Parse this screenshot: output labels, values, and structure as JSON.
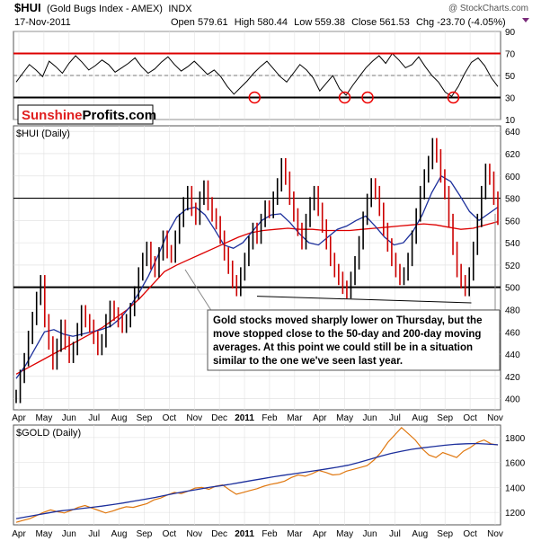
{
  "header": {
    "symbol": "$HUI",
    "name": "(Gold Bugs Index - AMEX)",
    "exchange_tag": "INDX",
    "watermark": "@ StockCharts.com",
    "date": "17-Nov-2011",
    "quote": {
      "open_label": "Open",
      "open": "579.61",
      "high_label": "High",
      "high": "580.44",
      "low_label": "Low",
      "low": "559.38",
      "close_label": "Close",
      "close": "561.53",
      "chg_label": "Chg",
      "chg": "-23.70 (-4.05%)"
    }
  },
  "brand": {
    "part1": "Sunshine",
    "part2": "Profits.com"
  },
  "annotation": "Gold stocks moved sharply lower on Thursday, but the move stopped close to the 50-day and 200-day moving averages. At this point we could still be in a situation similar to the one we've seen last year.",
  "annotation_lines": [
    "Gold stocks moved sharply lower on Thursday, but the",
    "move stopped close to the 50-day and 200-day moving",
    "averages. At this point we could still be in a situation",
    "similar to the one we've seen last year."
  ],
  "colors": {
    "price_up": "#000000",
    "price_down": "#cc0000",
    "ma50": "#1c2f9c",
    "ma200": "#dd0000",
    "gold": "#e07810",
    "rsi": "#000000",
    "rsi_band": "#dd0000",
    "circle": "#ee0000",
    "support": "#000000"
  },
  "chart_data": [
    {
      "type": "line",
      "panel": "RSI",
      "y_ticks": [
        "90",
        "70",
        "50",
        "30",
        "10"
      ],
      "ylim": [
        10,
        90
      ],
      "reference_lines": [
        70,
        30
      ],
      "oversold_marks": [
        "Jan 2011",
        "May 2011",
        "Jun 2011",
        "Oct 2011"
      ],
      "series": [
        {
          "values": [
            44,
            52,
            60,
            55,
            49,
            63,
            58,
            52,
            61,
            68,
            62,
            55,
            59,
            64,
            60,
            53,
            57,
            61,
            66,
            58,
            52,
            56,
            62,
            67,
            60,
            54,
            58,
            63,
            57,
            51,
            55,
            49,
            40,
            33,
            39,
            45,
            52,
            58,
            63,
            56,
            49,
            44,
            52,
            60,
            55,
            48,
            36,
            43,
            50,
            38,
            32,
            41,
            49,
            57,
            63,
            68,
            61,
            70,
            64,
            57,
            60,
            67,
            58,
            50,
            44,
            35,
            31,
            40,
            52,
            62,
            66,
            59,
            48,
            40
          ]
        }
      ]
    },
    {
      "type": "line",
      "title": "$HUI (Daily)",
      "x_ticks": [
        "Apr",
        "May",
        "Jun",
        "Jul",
        "Aug",
        "Sep",
        "Oct",
        "Nov",
        "Dec",
        "2011",
        "Feb",
        "Mar",
        "Apr",
        "May",
        "Jun",
        "Jul",
        "Aug",
        "Sep",
        "Oct",
        "Nov"
      ],
      "y_ticks": [
        "640",
        "620",
        "600",
        "580",
        "560",
        "540",
        "520",
        "500",
        "480",
        "460",
        "440",
        "420",
        "400"
      ],
      "ylim": [
        390,
        645
      ],
      "horizontal_lines": [
        580,
        500
      ],
      "trendline": {
        "from": [
          "Jan 2011",
          492
        ],
        "to": [
          "Nov 2011",
          486
        ]
      },
      "series": [
        {
          "name": "$HUI",
          "values": [
            402,
            420,
            435,
            455,
            472,
            490,
            505,
            470,
            450,
            432,
            448,
            465,
            450,
            438,
            445,
            462,
            478,
            470,
            465,
            455,
            445,
            452,
            470,
            482,
            476,
            470,
            465,
            470,
            480,
            495,
            512,
            525,
            535,
            522,
            515,
            530,
            545,
            532,
            528,
            545,
            560,
            575,
            585,
            570,
            562,
            580,
            590,
            575,
            565,
            558,
            545,
            530,
            518,
            505,
            498,
            512,
            525,
            540,
            552,
            545,
            560,
            572,
            568,
            580,
            592,
            610,
            598,
            580,
            565,
            552,
            540,
            560,
            575,
            585,
            570,
            555,
            540,
            525,
            515,
            508,
            500,
            496,
            508,
            522,
            540,
            562,
            578,
            592,
            585,
            570,
            552,
            538,
            525,
            515,
            508,
            512,
            525,
            545,
            565,
            585,
            600,
            612,
            628,
            618,
            600,
            585,
            560,
            535,
            515,
            505,
            498,
            512,
            535,
            560,
            585,
            605,
            598,
            580,
            562
          ]
        },
        {
          "name": "50-day MA",
          "values": [
            418,
            430,
            445,
            460,
            462,
            458,
            456,
            458,
            460,
            462,
            465,
            472,
            482,
            495,
            510,
            528,
            548,
            563,
            570,
            572,
            565,
            552,
            538,
            535,
            540,
            550,
            560,
            565,
            566,
            558,
            548,
            540,
            538,
            545,
            552,
            555,
            560,
            564,
            555,
            545,
            538,
            540,
            550,
            565,
            585,
            600,
            595,
            582,
            568,
            560,
            566,
            572
          ]
        },
        {
          "name": "200-day MA",
          "values": [
            422,
            428,
            434,
            440,
            446,
            452,
            458,
            464,
            472,
            480,
            490,
            502,
            514,
            520,
            525,
            530,
            535,
            540,
            545,
            549,
            551,
            552,
            553,
            552,
            552,
            551,
            551,
            551,
            552,
            553,
            554,
            555,
            556,
            557,
            556,
            554,
            552,
            553,
            556,
            559
          ]
        }
      ]
    },
    {
      "type": "line",
      "title": "$GOLD (Daily)",
      "x_ticks": [
        "Apr",
        "May",
        "Jun",
        "Jul",
        "Aug",
        "Sep",
        "Oct",
        "Nov",
        "Dec",
        "2011",
        "Feb",
        "Mar",
        "Apr",
        "May",
        "Jun",
        "Jul",
        "Aug",
        "Sep",
        "Oct",
        "Nov"
      ],
      "y_ticks": [
        "1800",
        "1600",
        "1400",
        "1200"
      ],
      "ylim": [
        1100,
        1900
      ],
      "series": [
        {
          "name": "$GOLD",
          "values": [
            1120,
            1135,
            1150,
            1175,
            1200,
            1220,
            1205,
            1195,
            1215,
            1240,
            1255,
            1235,
            1215,
            1195,
            1210,
            1230,
            1245,
            1240,
            1255,
            1270,
            1300,
            1315,
            1340,
            1360,
            1350,
            1370,
            1395,
            1400,
            1385,
            1410,
            1420,
            1380,
            1345,
            1360,
            1375,
            1390,
            1410,
            1425,
            1435,
            1450,
            1480,
            1500,
            1490,
            1510,
            1535,
            1520,
            1500,
            1505,
            1530,
            1545,
            1560,
            1575,
            1620,
            1680,
            1760,
            1820,
            1880,
            1830,
            1780,
            1710,
            1660,
            1640,
            1680,
            1660,
            1640,
            1690,
            1720,
            1760,
            1780,
            1750,
            1740
          ]
        },
        {
          "name": "MA",
          "values": [
            1150,
            1165,
            1180,
            1195,
            1210,
            1220,
            1230,
            1240,
            1250,
            1262,
            1275,
            1290,
            1305,
            1320,
            1338,
            1355,
            1370,
            1385,
            1400,
            1412,
            1425,
            1440,
            1455,
            1470,
            1485,
            1498,
            1510,
            1522,
            1535,
            1548,
            1562,
            1578,
            1600,
            1625,
            1650,
            1672,
            1690,
            1706,
            1718,
            1728,
            1738,
            1746,
            1750,
            1752,
            1748,
            1742
          ]
        }
      ]
    }
  ]
}
